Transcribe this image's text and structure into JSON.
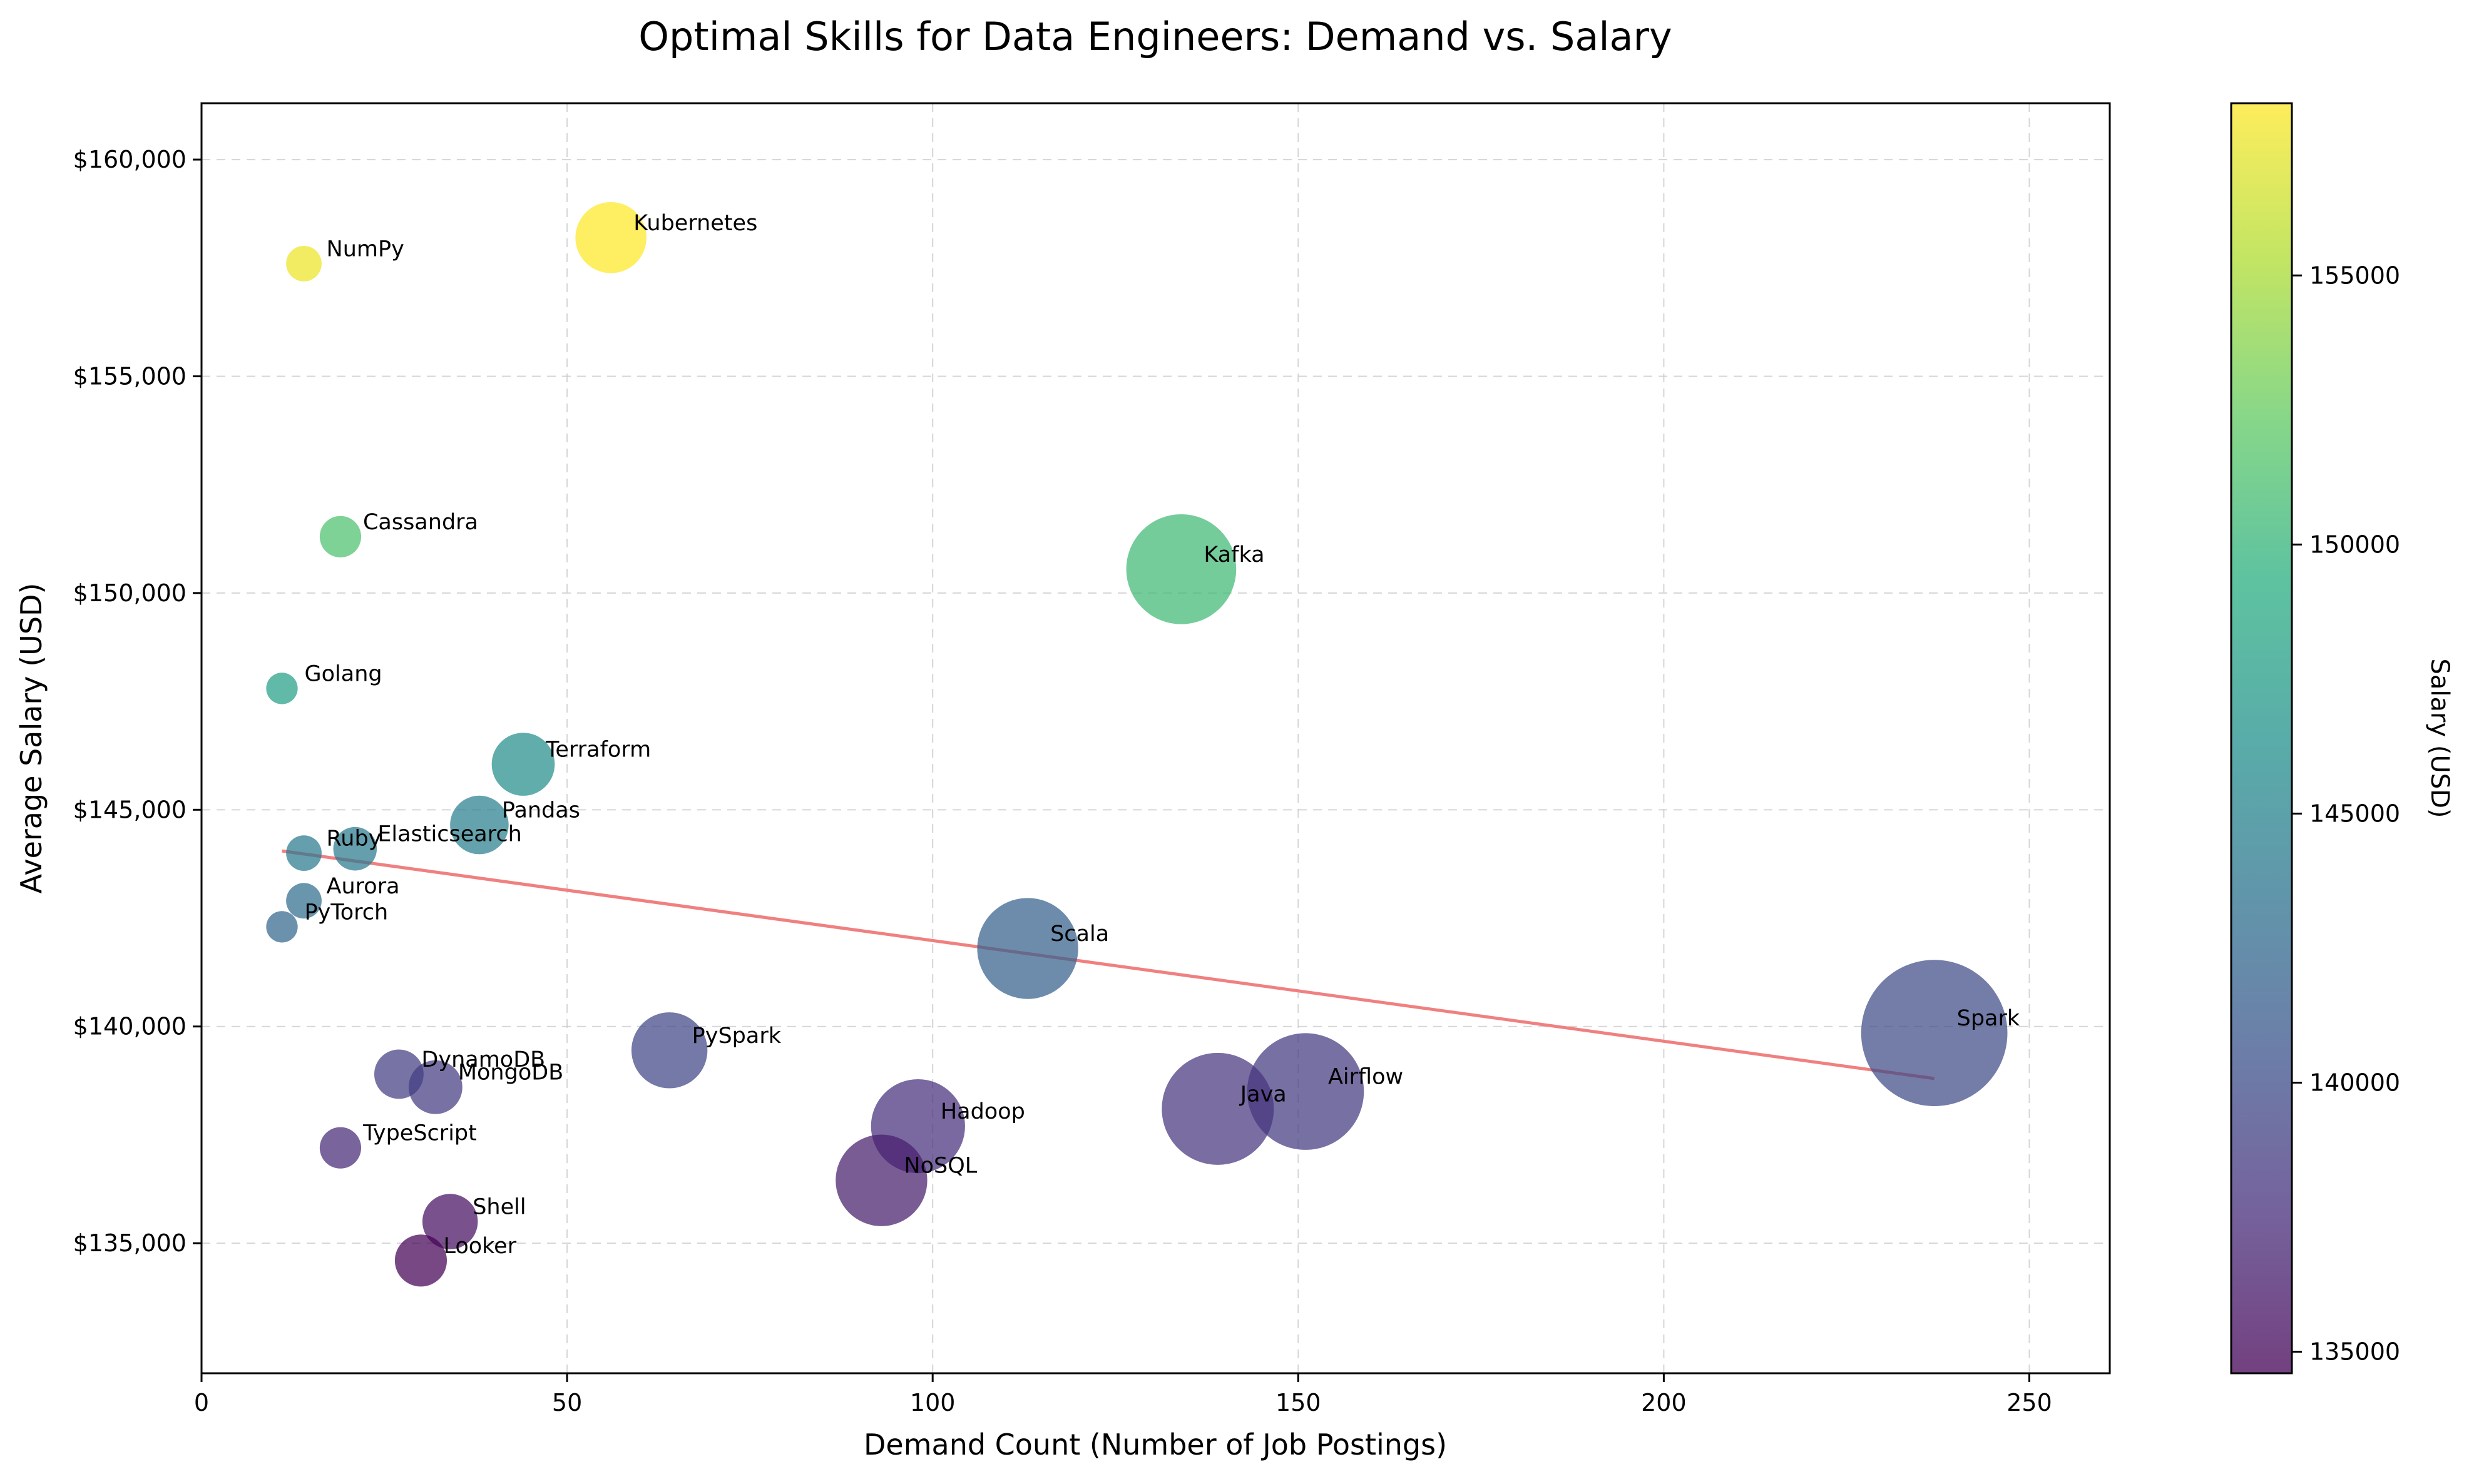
{
  "chart_data": {
    "type": "scatter",
    "title": "Optimal Skills for Data Engineers: Demand vs. Salary",
    "xlabel": "Demand Count (Number of Job Postings)",
    "ylabel": "Average Salary (USD)",
    "xlim": [
      0,
      261
    ],
    "ylim": [
      132000,
      161300
    ],
    "x_ticks": [
      0,
      50,
      100,
      150,
      200,
      250
    ],
    "x_tick_labels": [
      "0",
      "50",
      "100",
      "150",
      "200",
      "250"
    ],
    "y_ticks": [
      135000,
      140000,
      145000,
      150000,
      155000,
      160000
    ],
    "y_tick_labels": [
      "$135,000",
      "$140,000",
      "$145,000",
      "$150,000",
      "$155,000",
      "$160,000"
    ],
    "grid": true,
    "colorbar": {
      "label": "Salary (USD)",
      "colormap": "viridis",
      "range": [
        134600,
        158200
      ],
      "ticks": [
        135000,
        140000,
        145000,
        150000,
        155000
      ],
      "tick_labels": [
        "135000",
        "140000",
        "145000",
        "150000",
        "155000"
      ]
    },
    "trendline": {
      "x": [
        11,
        237
      ],
      "y": [
        144050,
        138800
      ],
      "color": "#f08080"
    },
    "points": [
      {
        "label": "Kubernetes",
        "x": 56,
        "y": 158200
      },
      {
        "label": "NumPy",
        "x": 14,
        "y": 157600
      },
      {
        "label": "Cassandra",
        "x": 19,
        "y": 151300
      },
      {
        "label": "Kafka",
        "x": 134,
        "y": 150550
      },
      {
        "label": "Golang",
        "x": 11,
        "y": 147800
      },
      {
        "label": "Terraform",
        "x": 44,
        "y": 146050
      },
      {
        "label": "Pandas",
        "x": 38,
        "y": 144650
      },
      {
        "label": "Elasticsearch",
        "x": 21,
        "y": 144100
      },
      {
        "label": "Ruby",
        "x": 14,
        "y": 144000
      },
      {
        "label": "Aurora",
        "x": 14,
        "y": 142900
      },
      {
        "label": "PyTorch",
        "x": 11,
        "y": 142300
      },
      {
        "label": "Scala",
        "x": 113,
        "y": 141800
      },
      {
        "label": "Spark",
        "x": 237,
        "y": 139850
      },
      {
        "label": "PySpark",
        "x": 64,
        "y": 139450
      },
      {
        "label": "DynamoDB",
        "x": 27,
        "y": 138900
      },
      {
        "label": "MongoDB",
        "x": 32,
        "y": 138600
      },
      {
        "label": "Airflow",
        "x": 151,
        "y": 138500
      },
      {
        "label": "Java",
        "x": 139,
        "y": 138100
      },
      {
        "label": "Hadoop",
        "x": 98,
        "y": 137700
      },
      {
        "label": "TypeScript",
        "x": 19,
        "y": 137200
      },
      {
        "label": "NoSQL",
        "x": 93,
        "y": 136450
      },
      {
        "label": "Shell",
        "x": 34,
        "y": 135500
      },
      {
        "label": "Looker",
        "x": 30,
        "y": 134600
      }
    ]
  }
}
